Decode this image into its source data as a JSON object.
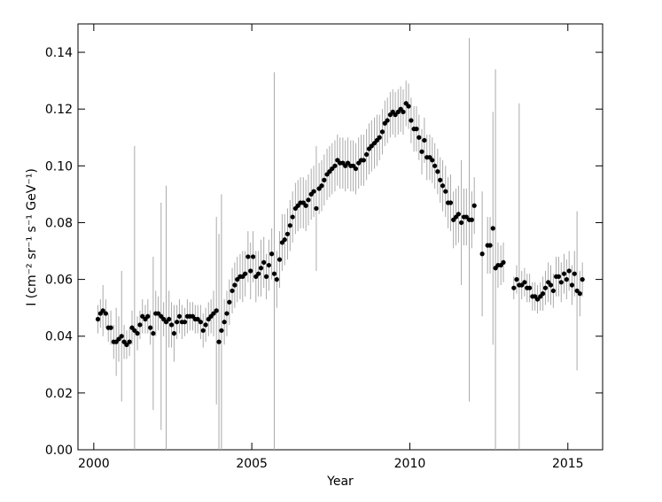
{
  "chart_data": {
    "type": "scatter",
    "x_label": "Year",
    "y_label": "I (cm⁻² sr⁻¹ s⁻¹ GeV⁻¹)",
    "xlim": [
      1999.5,
      2016.1
    ],
    "ylim": [
      0,
      0.15
    ],
    "xticks": [
      2000,
      2005,
      2010,
      2015
    ],
    "yticks": [
      {
        "value": 0,
        "label": "0.00"
      },
      {
        "value": 0.02,
        "label": "0.02"
      },
      {
        "value": 0.04,
        "label": "0.04"
      },
      {
        "value": 0.06,
        "label": "0.06"
      },
      {
        "value": 0.08,
        "label": "0.08"
      },
      {
        "value": 0.1,
        "label": "0.10"
      },
      {
        "value": 0.12,
        "label": "0.12"
      },
      {
        "value": 0.14,
        "label": "0.14"
      }
    ],
    "color": "#000000",
    "error_color": "#aaaaaa",
    "x": [
      2000.13,
      2000.21,
      2000.29,
      2000.38,
      2000.46,
      2000.54,
      2000.63,
      2000.71,
      2000.79,
      2000.88,
      2000.96,
      2001.04,
      2001.13,
      2001.21,
      2001.29,
      2001.38,
      2001.46,
      2001.54,
      2001.63,
      2001.71,
      2001.79,
      2001.88,
      2001.96,
      2002.04,
      2002.13,
      2002.21,
      2002.29,
      2002.38,
      2002.46,
      2002.54,
      2002.63,
      2002.71,
      2002.79,
      2002.88,
      2002.96,
      2003.04,
      2003.13,
      2003.21,
      2003.29,
      2003.38,
      2003.46,
      2003.54,
      2003.63,
      2003.71,
      2003.79,
      2003.88,
      2003.96,
      2004.04,
      2004.13,
      2004.21,
      2004.29,
      2004.38,
      2004.46,
      2004.54,
      2004.63,
      2004.71,
      2004.79,
      2004.88,
      2004.96,
      2005.04,
      2005.13,
      2005.21,
      2005.29,
      2005.38,
      2005.46,
      2005.54,
      2005.63,
      2005.71,
      2005.79,
      2005.88,
      2005.96,
      2006.04,
      2006.13,
      2006.21,
      2006.29,
      2006.38,
      2006.46,
      2006.54,
      2006.63,
      2006.71,
      2006.79,
      2006.88,
      2006.96,
      2007.04,
      2007.13,
      2007.21,
      2007.29,
      2007.38,
      2007.46,
      2007.54,
      2007.63,
      2007.71,
      2007.79,
      2007.88,
      2007.96,
      2008.04,
      2008.13,
      2008.21,
      2008.29,
      2008.38,
      2008.46,
      2008.54,
      2008.63,
      2008.71,
      2008.79,
      2008.88,
      2008.96,
      2009.04,
      2009.13,
      2009.21,
      2009.29,
      2009.38,
      2009.46,
      2009.54,
      2009.63,
      2009.71,
      2009.79,
      2009.88,
      2009.96,
      2010.04,
      2010.13,
      2010.21,
      2010.29,
      2010.38,
      2010.46,
      2010.54,
      2010.63,
      2010.71,
      2010.79,
      2010.88,
      2010.96,
      2011.04,
      2011.13,
      2011.21,
      2011.29,
      2011.38,
      2011.46,
      2011.54,
      2011.63,
      2011.71,
      2011.79,
      2011.88,
      2011.96,
      2012.04,
      2012.29,
      2012.46,
      2012.54,
      2012.63,
      2012.71,
      2012.79,
      2012.88,
      2012.96,
      2013.29,
      2013.38,
      2013.46,
      2013.54,
      2013.63,
      2013.71,
      2013.79,
      2013.88,
      2013.96,
      2014.04,
      2014.13,
      2014.21,
      2014.29,
      2014.38,
      2014.46,
      2014.54,
      2014.63,
      2014.71,
      2014.79,
      2014.88,
      2014.96,
      2015.04,
      2015.13,
      2015.21,
      2015.29,
      2015.38,
      2015.46
    ],
    "values": [
      0.046,
      0.048,
      0.049,
      0.048,
      0.043,
      0.043,
      0.038,
      0.038,
      0.039,
      0.04,
      0.038,
      0.037,
      0.038,
      0.043,
      0.042,
      0.041,
      0.044,
      0.047,
      0.046,
      0.047,
      0.043,
      0.041,
      0.048,
      0.048,
      0.047,
      0.046,
      0.045,
      0.046,
      0.044,
      0.041,
      0.045,
      0.047,
      0.045,
      0.045,
      0.047,
      0.047,
      0.047,
      0.046,
      0.046,
      0.045,
      0.042,
      0.044,
      0.046,
      0.047,
      0.048,
      0.049,
      0.038,
      0.042,
      0.045,
      0.048,
      0.052,
      0.056,
      0.058,
      0.06,
      0.061,
      0.061,
      0.062,
      0.068,
      0.063,
      0.068,
      0.061,
      0.062,
      0.064,
      0.066,
      0.061,
      0.065,
      0.069,
      0.062,
      0.06,
      0.067,
      0.073,
      0.074,
      0.076,
      0.079,
      0.082,
      0.085,
      0.086,
      0.087,
      0.087,
      0.086,
      0.088,
      0.09,
      0.091,
      0.085,
      0.092,
      0.093,
      0.095,
      0.097,
      0.098,
      0.099,
      0.1,
      0.102,
      0.101,
      0.101,
      0.1,
      0.101,
      0.1,
      0.1,
      0.099,
      0.101,
      0.102,
      0.102,
      0.104,
      0.106,
      0.107,
      0.108,
      0.109,
      0.11,
      0.112,
      0.115,
      0.116,
      0.118,
      0.119,
      0.118,
      0.119,
      0.12,
      0.119,
      0.122,
      0.121,
      0.116,
      0.113,
      0.113,
      0.11,
      0.105,
      0.109,
      0.103,
      0.103,
      0.102,
      0.1,
      0.098,
      0.095,
      0.093,
      0.091,
      0.087,
      0.087,
      0.081,
      0.082,
      0.083,
      0.08,
      0.082,
      0.082,
      0.081,
      0.081,
      0.086,
      0.069,
      0.072,
      0.072,
      0.078,
      0.064,
      0.065,
      0.065,
      0.066,
      0.057,
      0.06,
      0.058,
      0.058,
      0.059,
      0.057,
      0.057,
      0.054,
      0.054,
      0.053,
      0.054,
      0.055,
      0.057,
      0.059,
      0.058,
      0.056,
      0.061,
      0.061,
      0.059,
      0.062,
      0.06,
      0.063,
      0.058,
      0.062,
      0.056,
      0.055,
      0.06
    ],
    "errors": [
      0.005,
      0.005,
      0.009,
      0.005,
      0.005,
      0.006,
      0.006,
      0.012,
      0.008,
      0.023,
      0.006,
      0.005,
      0.005,
      0.006,
      0.065,
      0.006,
      0.005,
      0.006,
      0.005,
      0.006,
      0.006,
      0.027,
      0.008,
      0.006,
      0.04,
      0.006,
      0.048,
      0.01,
      0.008,
      0.01,
      0.006,
      0.006,
      0.006,
      0.005,
      0.006,
      0.005,
      0.005,
      0.005,
      0.005,
      0.006,
      0.006,
      0.006,
      0.006,
      0.006,
      0.008,
      0.033,
      0.038,
      0.048,
      0.008,
      0.008,
      0.008,
      0.008,
      0.008,
      0.008,
      0.008,
      0.009,
      0.008,
      0.009,
      0.01,
      0.009,
      0.009,
      0.008,
      0.01,
      0.009,
      0.008,
      0.009,
      0.009,
      0.071,
      0.01,
      0.01,
      0.01,
      0.009,
      0.009,
      0.009,
      0.009,
      0.009,
      0.009,
      0.009,
      0.009,
      0.009,
      0.009,
      0.009,
      0.009,
      0.022,
      0.009,
      0.009,
      0.009,
      0.009,
      0.009,
      0.009,
      0.009,
      0.009,
      0.009,
      0.009,
      0.009,
      0.009,
      0.009,
      0.009,
      0.009,
      0.009,
      0.009,
      0.009,
      0.009,
      0.009,
      0.009,
      0.009,
      0.009,
      0.008,
      0.008,
      0.008,
      0.008,
      0.008,
      0.008,
      0.008,
      0.008,
      0.008,
      0.008,
      0.008,
      0.008,
      0.008,
      0.008,
      0.008,
      0.008,
      0.008,
      0.008,
      0.008,
      0.008,
      0.008,
      0.008,
      0.008,
      0.008,
      0.009,
      0.009,
      0.009,
      0.01,
      0.01,
      0.01,
      0.01,
      0.022,
      0.01,
      0.01,
      0.064,
      0.01,
      0.01,
      0.022,
      0.01,
      0.01,
      0.041,
      0.07,
      0.008,
      0.007,
      0.007,
      0.004,
      0.005,
      0.064,
      0.005,
      0.005,
      0.005,
      0.005,
      0.005,
      0.005,
      0.005,
      0.005,
      0.006,
      0.006,
      0.007,
      0.007,
      0.006,
      0.007,
      0.007,
      0.007,
      0.007,
      0.007,
      0.007,
      0.007,
      0.008,
      0.028,
      0.008,
      0.006
    ]
  }
}
